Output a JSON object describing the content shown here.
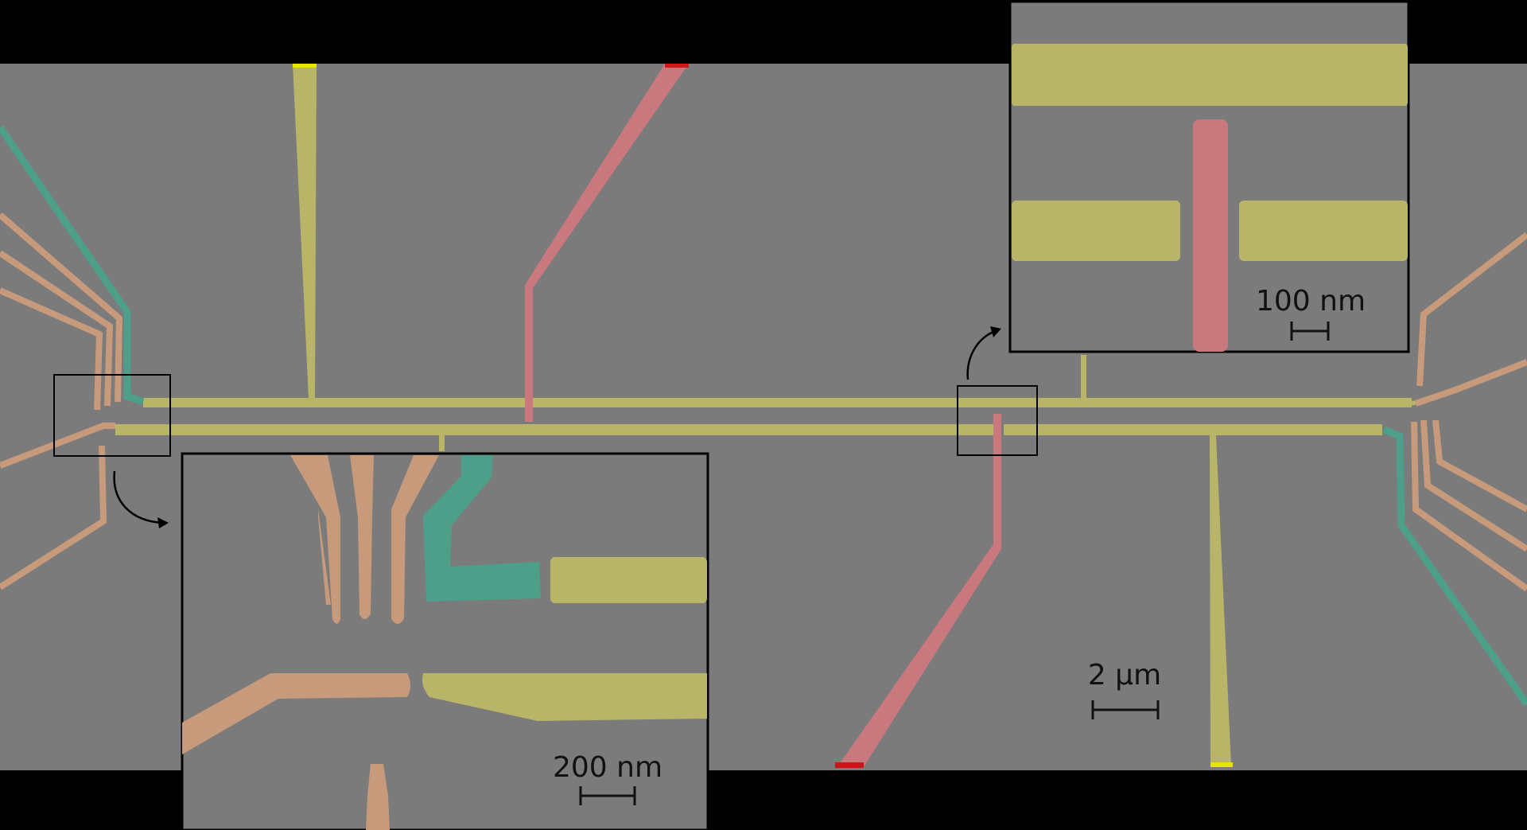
{
  "scale_bars": {
    "main": "2 µm",
    "inset_left": "200 nm",
    "inset_right": "100 nm"
  },
  "colors": {
    "background": "#000000",
    "substrate": "#7b7b7c",
    "yellow_gate": "#b9b568",
    "red_gate": "#c9787e",
    "orange_gate": "#c79a7b",
    "teal_gate": "#4e9f89",
    "inset_border": "#000000"
  },
  "icons": {
    "callout_arrows": "curved-arrow-icon"
  }
}
